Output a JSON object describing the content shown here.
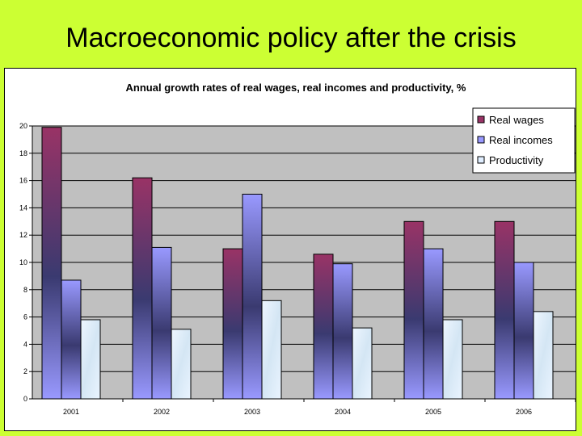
{
  "slide": {
    "title": "Macroeconomic policy after the crisis"
  },
  "chart_data": {
    "type": "bar",
    "title": "Annual growth rates of real wages, real incomes and productivity, %",
    "categories": [
      "2001",
      "2002",
      "2003",
      "2004",
      "2005",
      "2006"
    ],
    "series": [
      {
        "name": "Real wages",
        "values": [
          19.9,
          16.2,
          11.0,
          10.6,
          13.0,
          13.0
        ],
        "color": "#993366"
      },
      {
        "name": "Real incomes",
        "values": [
          8.7,
          11.1,
          15.0,
          9.9,
          11.0,
          10.0
        ],
        "color": "#9999ff"
      },
      {
        "name": "Productivity",
        "values": [
          5.8,
          5.1,
          7.2,
          5.2,
          5.8,
          6.4
        ],
        "color": "#ddeeff"
      }
    ],
    "ylim": [
      0,
      20
    ],
    "yticks": [
      0,
      2,
      4,
      6,
      8,
      10,
      12,
      14,
      16,
      18,
      20
    ],
    "grid": true,
    "plot_background": "#c0c0c0",
    "legend": "top-right"
  }
}
